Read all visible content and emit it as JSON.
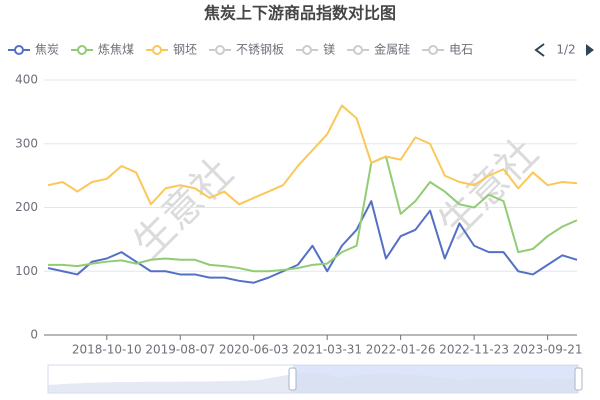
{
  "chart_data": {
    "type": "line",
    "title": "焦炭上下游商品指数对比图",
    "categories": [
      null,
      null,
      null,
      null,
      "2018-10-10",
      null,
      null,
      null,
      null,
      "2019-08-07",
      null,
      null,
      null,
      null,
      "2020-06-03",
      null,
      null,
      null,
      null,
      "2021-03-31",
      null,
      null,
      null,
      null,
      "2022-01-26",
      null,
      null,
      null,
      null,
      "2022-11-23",
      null,
      null,
      null,
      null,
      "2023-09-21",
      null,
      null
    ],
    "series": [
      {
        "name": "焦炭",
        "color": "#5470c6",
        "values": [
          105,
          100,
          95,
          115,
          120,
          130,
          115,
          100,
          100,
          95,
          95,
          90,
          90,
          85,
          82,
          90,
          100,
          110,
          140,
          100,
          140,
          165,
          210,
          120,
          155,
          165,
          195,
          120,
          175,
          140,
          130,
          130,
          100,
          95,
          110,
          125,
          118
        ]
      },
      {
        "name": "炼焦煤",
        "color": "#91cc75",
        "values": [
          110,
          110,
          108,
          112,
          115,
          117,
          112,
          118,
          120,
          118,
          118,
          110,
          108,
          105,
          100,
          100,
          102,
          105,
          110,
          112,
          130,
          140,
          270,
          280,
          190,
          210,
          240,
          225,
          205,
          200,
          220,
          210,
          130,
          135,
          155,
          170,
          180
        ]
      },
      {
        "name": "钢坯",
        "color": "#fac858",
        "values": [
          235,
          240,
          225,
          240,
          245,
          265,
          255,
          205,
          230,
          235,
          230,
          215,
          225,
          205,
          215,
          225,
          235,
          265,
          290,
          315,
          360,
          340,
          270,
          280,
          275,
          310,
          300,
          250,
          240,
          235,
          250,
          260,
          230,
          255,
          235,
          240,
          238
        ]
      }
    ],
    "inactive_legend": [
      "不锈钢板",
      "镁",
      "金属硅",
      "电石"
    ],
    "legend_page": "1/2",
    "watermark": "生意社",
    "ylim": [
      0,
      400
    ],
    "yticks": [
      0,
      100,
      200,
      300,
      400
    ],
    "grid": true
  }
}
